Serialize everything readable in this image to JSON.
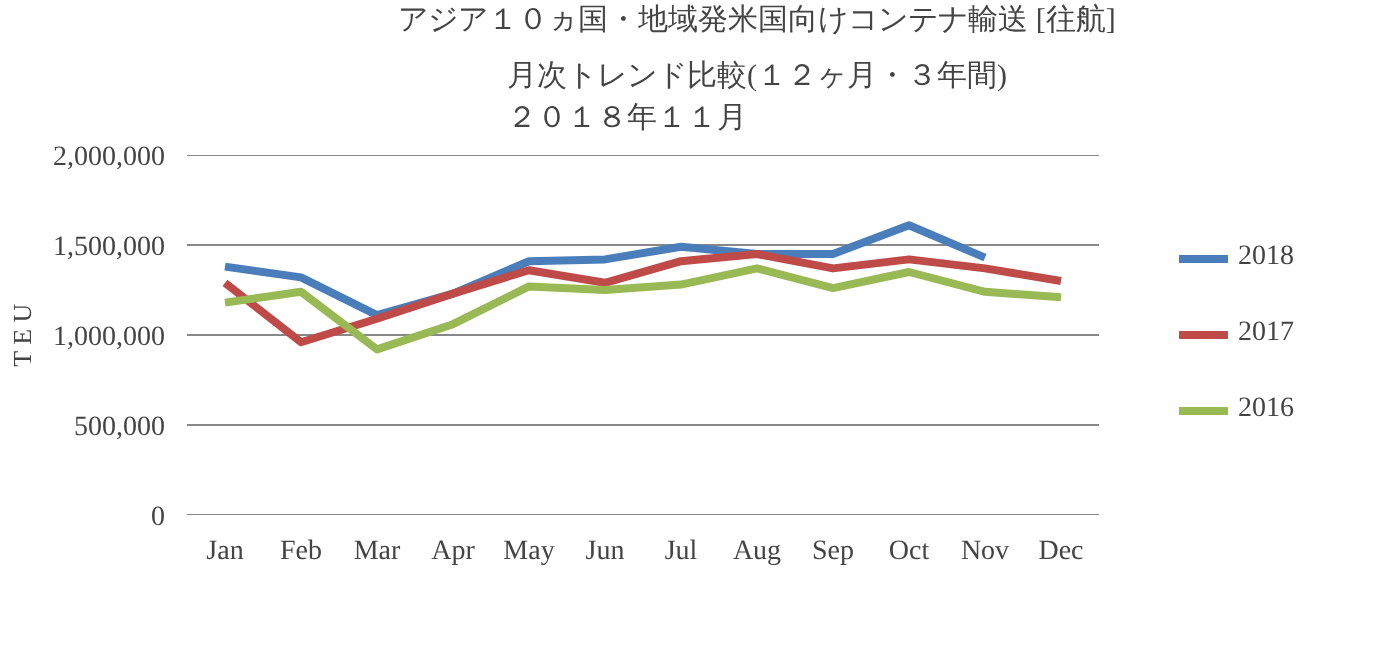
{
  "chart_data": {
    "type": "line",
    "title": "アジア１０ヵ国・地域発米国向けコンテナ輸送 [往航]",
    "subtitle": "月次トレンド比較(１２ヶ月・３年間)\n２０１８年１１月",
    "ylabel": "T E U",
    "categories": [
      "Jan",
      "Feb",
      "Mar",
      "Apr",
      "May",
      "Jun",
      "Jul",
      "Aug",
      "Sep",
      "Oct",
      "Nov",
      "Dec"
    ],
    "series": [
      {
        "name": "2018",
        "color": "#4a7ebb",
        "values": [
          1380000,
          1320000,
          1110000,
          1230000,
          1410000,
          1420000,
          1490000,
          1450000,
          1450000,
          1610000,
          1430000,
          null
        ]
      },
      {
        "name": "2017",
        "color": "#be4b48",
        "values": [
          1290000,
          960000,
          1090000,
          1230000,
          1360000,
          1290000,
          1410000,
          1450000,
          1370000,
          1420000,
          1370000,
          1300000
        ]
      },
      {
        "name": "2016",
        "color": "#98b954",
        "values": [
          1180000,
          1240000,
          920000,
          1060000,
          1270000,
          1250000,
          1280000,
          1370000,
          1260000,
          1350000,
          1240000,
          1210000
        ]
      }
    ],
    "ylim": [
      0,
      2000000
    ],
    "yticks": [
      {
        "value": 0,
        "label": "0"
      },
      {
        "value": 500000,
        "label": "500,000"
      },
      {
        "value": 1000000,
        "label": "1,000,000"
      },
      {
        "value": 1500000,
        "label": "1,500,000"
      },
      {
        "value": 2000000,
        "label": "2,000,000"
      }
    ],
    "grid": "y",
    "legend": "right",
    "marker": "none",
    "line_style": "solid"
  }
}
